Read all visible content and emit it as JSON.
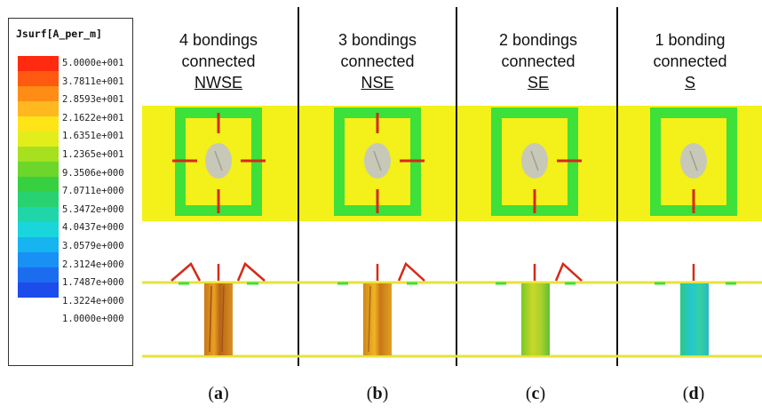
{
  "legend": {
    "title": "Jsurf[A_per_m]",
    "colors": [
      "#ff2a10",
      "#ff5a10",
      "#ff8c14",
      "#ffb820",
      "#ffe418",
      "#e2ee1c",
      "#a6e01e",
      "#6cd62a",
      "#36d040",
      "#28d270",
      "#20d6a8",
      "#18d6dc",
      "#16b4f0",
      "#1890f4",
      "#1c6cf0",
      "#1c4cec"
    ],
    "labels": [
      "5.0000e+001",
      "3.7811e+001",
      "2.8593e+001",
      "2.1622e+001",
      "1.6351e+001",
      "1.2365e+001",
      "9.3506e+000",
      "7.0711e+000",
      "5.3472e+000",
      "4.0437e+000",
      "3.0579e+000",
      "2.3124e+000",
      "1.7487e+000",
      "1.3224e+000",
      "1.0000e+000"
    ]
  },
  "panels": [
    {
      "line1": "4 bondings",
      "line2": "connected",
      "name": "NWSE",
      "caption_letter": "a"
    },
    {
      "line1": "3 bondings",
      "line2": "connected",
      "name": "NSE",
      "caption_letter": "b"
    },
    {
      "line1": "2 bondings",
      "line2": "connected",
      "name": "SE",
      "caption_letter": "c"
    },
    {
      "line1": "1 bonding",
      "line2": "connected",
      "name": "S",
      "caption_letter": "d"
    }
  ],
  "colors": {
    "board": "#f4f01a",
    "ring": "#3ee03a",
    "via": "#c8c8b8",
    "bond": "#d42a18"
  }
}
